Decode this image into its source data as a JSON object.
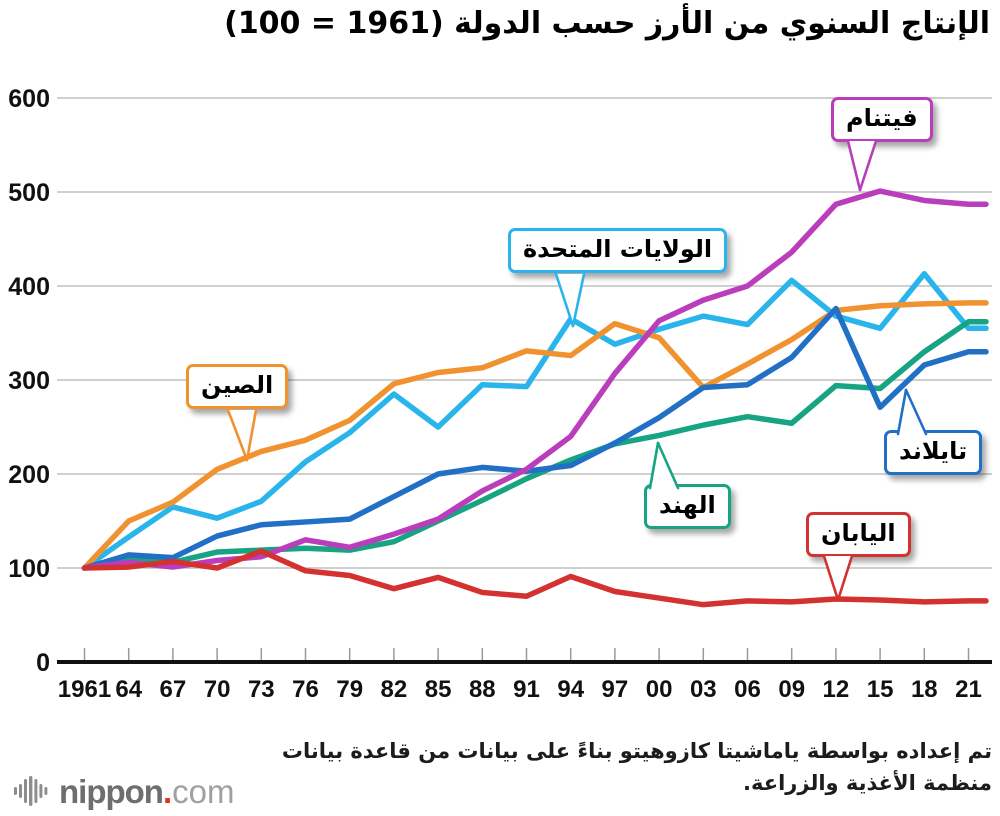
{
  "title": "الإنتاج السنوي من الأرز حسب الدولة (1961 = 100)",
  "chart_data": {
    "type": "line",
    "x_tick_labels": [
      "1961",
      "64",
      "67",
      "70",
      "73",
      "76",
      "79",
      "82",
      "85",
      "88",
      "91",
      "94",
      "97",
      "00",
      "03",
      "06",
      "09",
      "12",
      "15",
      "18",
      "21"
    ],
    "ylim": [
      0,
      600
    ],
    "y_ticks": [
      600,
      500,
      400,
      300,
      200,
      100,
      0
    ],
    "grid": true,
    "legend_position": "callout-labels-on-chart",
    "series": [
      {
        "id": "usa",
        "name": "الولايات المتحدة",
        "color": "#29b4ec",
        "values": [
          100,
          133,
          165,
          153,
          171,
          213,
          244,
          285,
          250,
          295,
          293,
          365,
          338,
          354,
          368,
          359,
          406,
          368,
          355,
          413,
          355
        ]
      },
      {
        "id": "china",
        "name": "الصين",
        "color": "#f0922f",
        "values": [
          100,
          150,
          170,
          205,
          224,
          236,
          257,
          296,
          308,
          313,
          331,
          326,
          360,
          345,
          292,
          317,
          343,
          374,
          379,
          381,
          382
        ]
      },
      {
        "id": "india",
        "name": "الهند",
        "color": "#16a483",
        "values": [
          100,
          111,
          106,
          117,
          119,
          121,
          119,
          128,
          150,
          172,
          195,
          215,
          232,
          241,
          252,
          261,
          254,
          294,
          291,
          330,
          362
        ]
      },
      {
        "id": "thailand",
        "name": "تايلاند",
        "color": "#2170c6",
        "values": [
          100,
          114,
          111,
          134,
          146,
          149,
          152,
          176,
          200,
          207,
          203,
          209,
          233,
          260,
          292,
          295,
          324,
          376,
          271,
          316,
          330
        ]
      },
      {
        "id": "vietnam",
        "name": "فيتنام",
        "color": "#ba3dbb",
        "values": [
          100,
          106,
          101,
          108,
          112,
          130,
          122,
          136,
          152,
          182,
          205,
          240,
          307,
          363,
          385,
          400,
          436,
          487,
          501,
          491,
          487
        ]
      },
      {
        "id": "japan",
        "name": "اليابان",
        "color": "#d33230",
        "values": [
          100,
          101,
          107,
          100,
          118,
          97,
          92,
          78,
          90,
          74,
          70,
          91,
          75,
          68,
          61,
          65,
          64,
          67,
          66,
          64,
          65
        ]
      }
    ]
  },
  "footer": {
    "source": "تم إعداده بواسطة ياماشيتا كازوهيتو بناءً على بيانات من قاعدة بيانات منظمة الأغذية والزراعة."
  },
  "logo": {
    "text": "nippon",
    "dot": ".",
    "tld": "com"
  }
}
